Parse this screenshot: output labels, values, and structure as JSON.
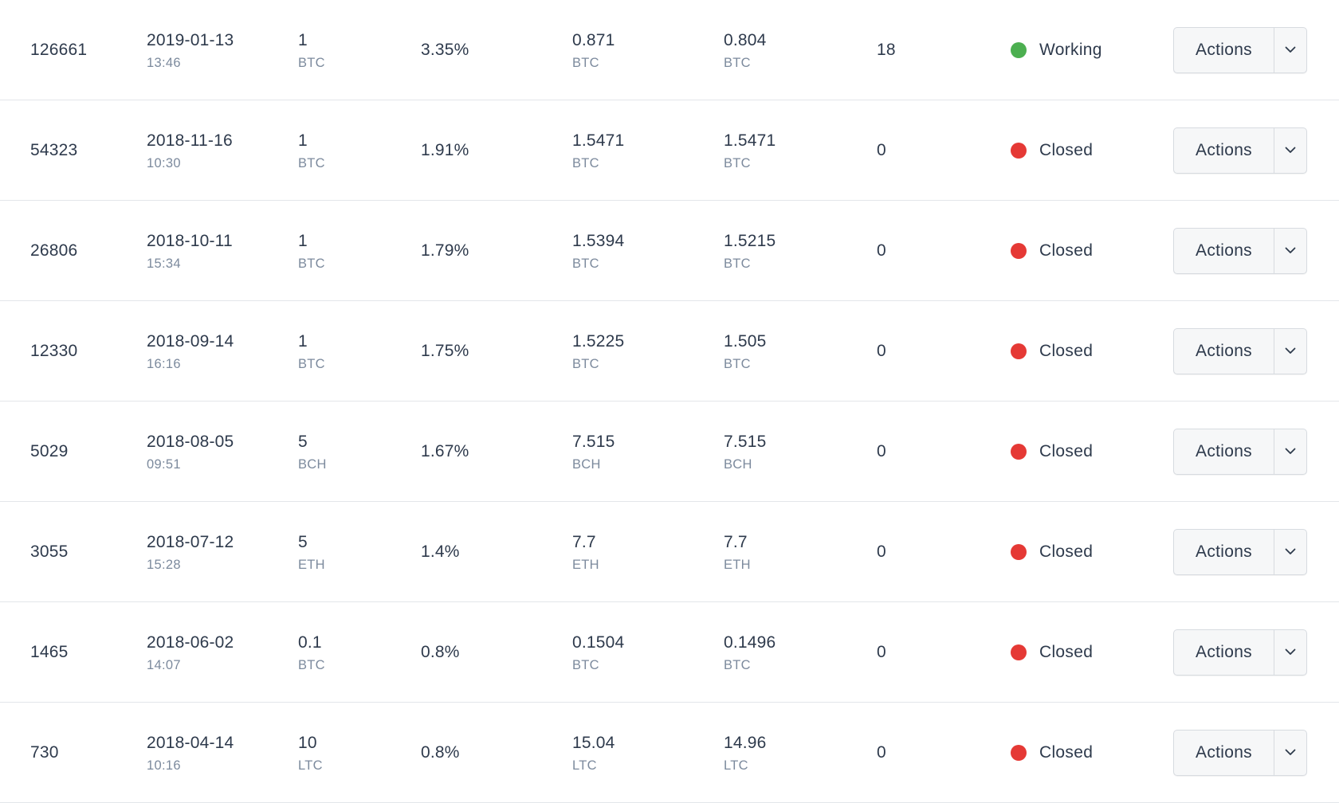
{
  "colors": {
    "working": "#4caf50",
    "closed": "#e53935"
  },
  "actions_label": "Actions",
  "caret_icon": "chevron-down-icon",
  "rows": [
    {
      "id": "126661",
      "date": "2019-01-13",
      "time": "13:46",
      "amount": "1",
      "amount_unit": "BTC",
      "rate": "3.35%",
      "total": "0.871",
      "total_unit": "BTC",
      "paid": "0.804",
      "paid_unit": "BTC",
      "count": "18",
      "status": "Working",
      "status_color": "#4caf50"
    },
    {
      "id": "54323",
      "date": "2018-11-16",
      "time": "10:30",
      "amount": "1",
      "amount_unit": "BTC",
      "rate": "1.91%",
      "total": "1.5471",
      "total_unit": "BTC",
      "paid": "1.5471",
      "paid_unit": "BTC",
      "count": "0",
      "status": "Closed",
      "status_color": "#e53935"
    },
    {
      "id": "26806",
      "date": "2018-10-11",
      "time": "15:34",
      "amount": "1",
      "amount_unit": "BTC",
      "rate": "1.79%",
      "total": "1.5394",
      "total_unit": "BTC",
      "paid": "1.5215",
      "paid_unit": "BTC",
      "count": "0",
      "status": "Closed",
      "status_color": "#e53935"
    },
    {
      "id": "12330",
      "date": "2018-09-14",
      "time": "16:16",
      "amount": "1",
      "amount_unit": "BTC",
      "rate": "1.75%",
      "total": "1.5225",
      "total_unit": "BTC",
      "paid": "1.505",
      "paid_unit": "BTC",
      "count": "0",
      "status": "Closed",
      "status_color": "#e53935"
    },
    {
      "id": "5029",
      "date": "2018-08-05",
      "time": "09:51",
      "amount": "5",
      "amount_unit": "BCH",
      "rate": "1.67%",
      "total": "7.515",
      "total_unit": "BCH",
      "paid": "7.515",
      "paid_unit": "BCH",
      "count": "0",
      "status": "Closed",
      "status_color": "#e53935"
    },
    {
      "id": "3055",
      "date": "2018-07-12",
      "time": "15:28",
      "amount": "5",
      "amount_unit": "ETH",
      "rate": "1.4%",
      "total": "7.7",
      "total_unit": "ETH",
      "paid": "7.7",
      "paid_unit": "ETH",
      "count": "0",
      "status": "Closed",
      "status_color": "#e53935"
    },
    {
      "id": "1465",
      "date": "2018-06-02",
      "time": "14:07",
      "amount": "0.1",
      "amount_unit": "BTC",
      "rate": "0.8%",
      "total": "0.1504",
      "total_unit": "BTC",
      "paid": "0.1496",
      "paid_unit": "BTC",
      "count": "0",
      "status": "Closed",
      "status_color": "#e53935"
    },
    {
      "id": "730",
      "date": "2018-04-14",
      "time": "10:16",
      "amount": "10",
      "amount_unit": "LTC",
      "rate": "0.8%",
      "total": "15.04",
      "total_unit": "LTC",
      "paid": "14.96",
      "paid_unit": "LTC",
      "count": "0",
      "status": "Closed",
      "status_color": "#e53935"
    }
  ]
}
